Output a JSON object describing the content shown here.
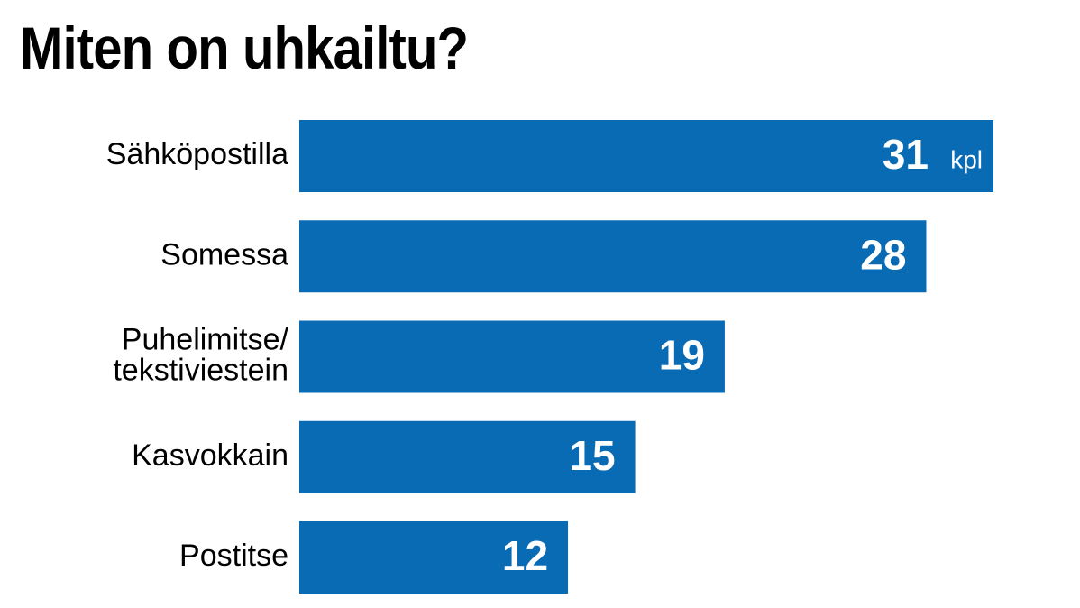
{
  "title": "Miten on uhkailtu?",
  "colors": {
    "bar": "#0a6bb5",
    "background": "#ffffff",
    "text": "#000000",
    "value_text": "#ffffff"
  },
  "chart_data": {
    "type": "bar",
    "orientation": "horizontal",
    "title": "Miten on uhkailtu?",
    "categories": [
      [
        "Sähköpostilla"
      ],
      [
        "Somessa"
      ],
      [
        "Puhelimitse/",
        "tekstiviestein"
      ],
      [
        "Kasvokkain"
      ],
      [
        "Postitse"
      ]
    ],
    "values": [
      31,
      28,
      19,
      15,
      12
    ],
    "value_unit": "kpl",
    "xlim": [
      0,
      31
    ],
    "grid": false,
    "legend": "none"
  }
}
